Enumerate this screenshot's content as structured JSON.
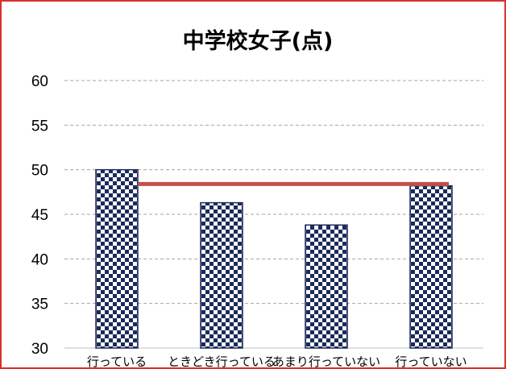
{
  "chart_data": {
    "type": "bar",
    "title": "中学校女子(点)",
    "categories": [
      "行っている",
      "ときどき行っている",
      "あまり行っていない",
      "行っていない"
    ],
    "values": [
      50.0,
      46.3,
      43.8,
      48.2
    ],
    "reference_line": {
      "value": 48.4
    },
    "ylim": [
      30,
      60
    ],
    "yticks": [
      "30",
      "35",
      "40",
      "45",
      "50",
      "55",
      "60"
    ],
    "xlabel": "",
    "ylabel": "",
    "grid": "horizontal dashed",
    "legend": "none",
    "colors": {
      "frame": "#d9302c",
      "bar_fill": "#1b2a5a",
      "bar_pattern_light": "#ffffff",
      "reference_line": "#c0504d",
      "grid": "#a6a6a6",
      "text": "#000000"
    }
  }
}
